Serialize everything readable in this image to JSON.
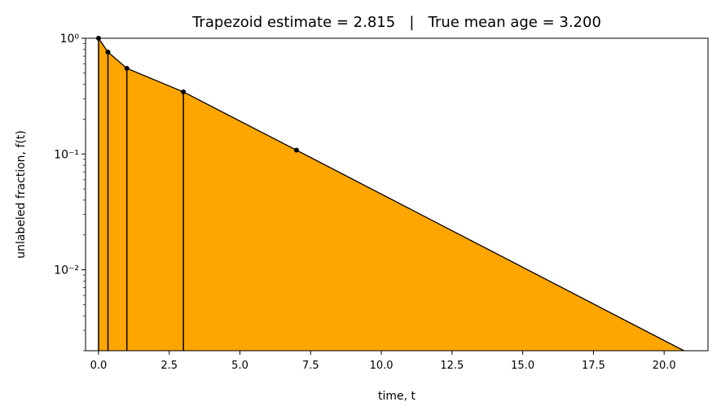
{
  "chart_data": {
    "type": "area",
    "title": "Trapezoid estimate = 2.815   |   True mean age = 3.200",
    "xlabel": "time, t",
    "ylabel": "unlabeled fraction, f(t)",
    "x": [
      0,
      0.333,
      1,
      3,
      7
    ],
    "values": [
      1,
      0.76,
      0.55,
      0.344,
      0.108
    ],
    "tail_end": {
      "x": 20.7,
      "value": 0.002
    },
    "color": "#ffa500",
    "edge_color": "#000000",
    "ylog": true,
    "xlim": [
      -0.46,
      21.55
    ],
    "ylim": [
      0.002,
      1
    ],
    "xticks": [
      {
        "value": 0,
        "label": "0.0"
      },
      2.5,
      {
        "value": 5,
        "label": "5.0"
      },
      7.5,
      {
        "value": 10,
        "label": "10.0"
      },
      12.5,
      {
        "value": 15,
        "label": "15.0"
      },
      17.5,
      {
        "value": 20,
        "label": "20.0"
      }
    ],
    "yticks": [
      {
        "value": 0.01,
        "label": "10⁻²"
      },
      {
        "value": 0.1,
        "label": "10⁻¹"
      },
      {
        "value": 1,
        "label": "10⁰"
      }
    ],
    "yminorticks": [
      0.002,
      0.003,
      0.004,
      0.005,
      0.006,
      0.007,
      0.008,
      0.009,
      0.02,
      0.03,
      0.04,
      0.05,
      0.06,
      0.07,
      0.08,
      0.09,
      0.2,
      0.3,
      0.4,
      0.5,
      0.6,
      0.7,
      0.8,
      0.9
    ]
  }
}
